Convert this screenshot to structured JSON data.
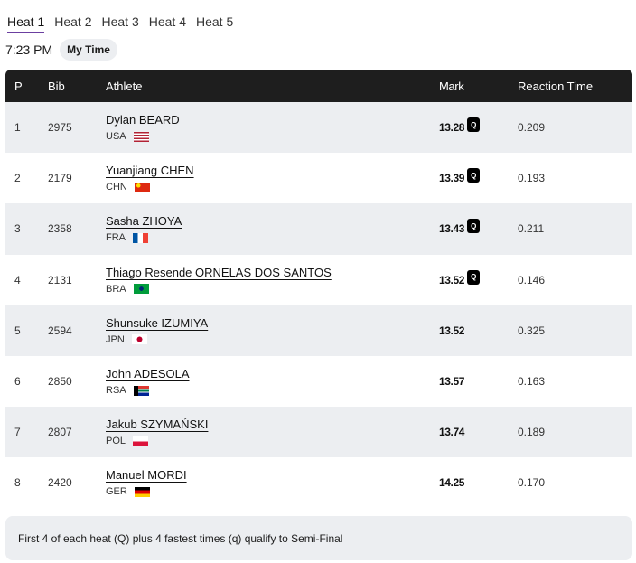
{
  "tabs": [
    "Heat 1",
    "Heat 2",
    "Heat 3",
    "Heat 4",
    "Heat 5"
  ],
  "active_tab": 0,
  "time": "7:23 PM",
  "my_time_label": "My Time",
  "table": {
    "headers": {
      "p": "P",
      "bib": "Bib",
      "athlete": "Athlete",
      "mark": "Mark",
      "reaction": "Reaction Time"
    },
    "rows": [
      {
        "p": "1",
        "bib": "2975",
        "name": "Dylan BEARD",
        "country": "USA",
        "mark": "13.28",
        "q": "Q",
        "rt": "0.209"
      },
      {
        "p": "2",
        "bib": "2179",
        "name": "Yuanjiang CHEN",
        "country": "CHN",
        "mark": "13.39",
        "q": "Q",
        "rt": "0.193"
      },
      {
        "p": "3",
        "bib": "2358",
        "name": "Sasha ZHOYA",
        "country": "FRA",
        "mark": "13.43",
        "q": "Q",
        "rt": "0.211"
      },
      {
        "p": "4",
        "bib": "2131",
        "name": "Thiago Resende ORNELAS DOS SANTOS",
        "country": "BRA",
        "mark": "13.52",
        "q": "Q",
        "rt": "0.146"
      },
      {
        "p": "5",
        "bib": "2594",
        "name": "Shunsuke IZUMIYA",
        "country": "JPN",
        "mark": "13.52",
        "q": null,
        "rt": "0.325"
      },
      {
        "p": "6",
        "bib": "2850",
        "name": "John ADESOLA",
        "country": "RSA",
        "mark": "13.57",
        "q": null,
        "rt": "0.163"
      },
      {
        "p": "7",
        "bib": "2807",
        "name": "Jakub SZYMAŃSKI",
        "country": "POL",
        "mark": "13.74",
        "q": null,
        "rt": "0.189"
      },
      {
        "p": "8",
        "bib": "2420",
        "name": "Manuel MORDI",
        "country": "GER",
        "mark": "14.25",
        "q": null,
        "rt": "0.170"
      }
    ]
  },
  "note": "First 4 of each heat (Q) plus 4 fastest times (q) qualify to Semi-Final",
  "colors": {
    "accent": "#6b3fa0",
    "header_bg": "#1e1e1e",
    "row_alt": "#eceef1"
  }
}
